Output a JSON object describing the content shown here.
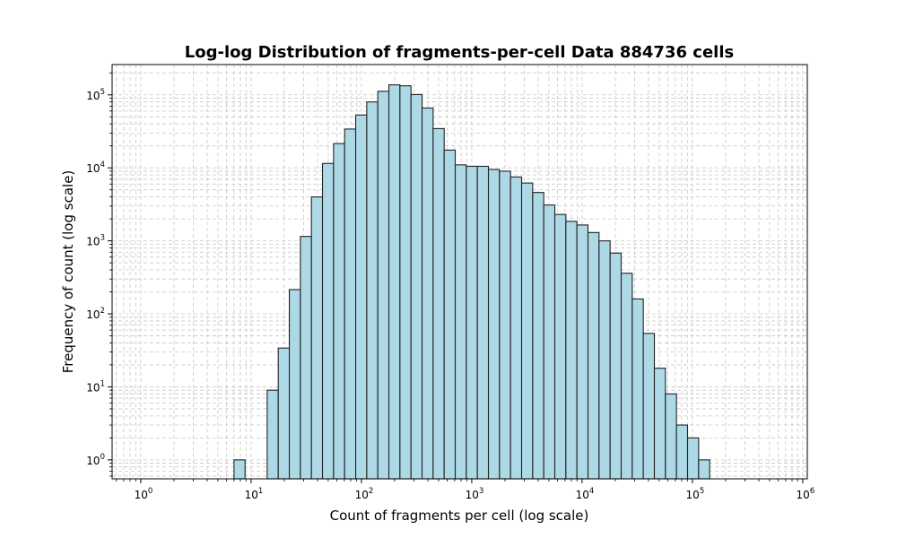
{
  "chart_data": {
    "type": "bar",
    "title": "Log-log Distribution of fragments-per-cell Data 884736 cells",
    "xlabel": "Count of fragments per cell (log scale)",
    "ylabel": "Frequency of count (log scale)",
    "x_scale": "log",
    "y_scale": "log",
    "xlim": [
      0.55,
      1100000
    ],
    "ylim": [
      0.55,
      260000
    ],
    "grid": true,
    "x_ticks": [
      {
        "base": "10",
        "exp": "0",
        "value": 1
      },
      {
        "base": "10",
        "exp": "1",
        "value": 10
      },
      {
        "base": "10",
        "exp": "2",
        "value": 100
      },
      {
        "base": "10",
        "exp": "3",
        "value": 1000
      },
      {
        "base": "10",
        "exp": "4",
        "value": 10000
      },
      {
        "base": "10",
        "exp": "5",
        "value": 100000
      },
      {
        "base": "10",
        "exp": "6",
        "value": 1000000
      }
    ],
    "y_ticks": [
      {
        "base": "10",
        "exp": "0",
        "value": 1
      },
      {
        "base": "10",
        "exp": "1",
        "value": 10
      },
      {
        "base": "10",
        "exp": "2",
        "value": 100
      },
      {
        "base": "10",
        "exp": "3",
        "value": 1000
      },
      {
        "base": "10",
        "exp": "4",
        "value": 10000
      },
      {
        "base": "10",
        "exp": "5",
        "value": 100000
      }
    ],
    "bins": {
      "edges_start": 7.0,
      "edges_ratio": 1.2597,
      "counts": [
        1,
        0,
        0,
        9,
        34,
        215,
        1150,
        4000,
        11500,
        21500,
        34000,
        53000,
        80000,
        112000,
        137000,
        133000,
        101000,
        66000,
        34500,
        17500,
        11000,
        10500,
        10500,
        9500,
        9000,
        7500,
        6200,
        4600,
        3100,
        2300,
        1850,
        1650,
        1300,
        1000,
        680,
        360,
        160,
        54,
        18,
        8,
        3,
        2,
        1
      ]
    },
    "bar_fill": "#add8e6",
    "bar_edge": "#222222",
    "grid_color": "#c8c8c8"
  }
}
